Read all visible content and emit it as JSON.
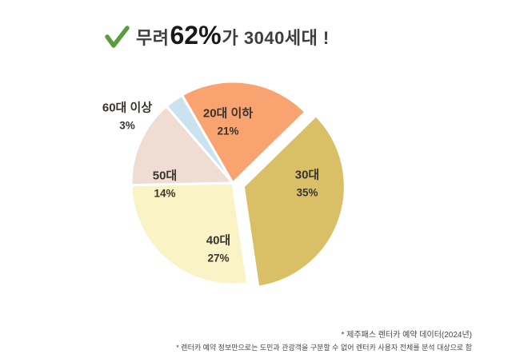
{
  "title": {
    "prefix": "무려 ",
    "highlight": "62%",
    "suffix": "가 3040세대 !"
  },
  "colors": {
    "check_green": "#5C9C3E",
    "title_text": "#3F3E3B",
    "highlight_text": "#191919",
    "label_text": "#39352E",
    "footnote_text": "#474747",
    "background": "#FFFFFF",
    "slice_gap_stroke": "#FFFFFF"
  },
  "footnotes": {
    "line1": "* 제주패스 렌터카 예약 데이터(2024년)",
    "line2": "* 렌터카 예약 정보만으로는 도민과 관광객을 구분할 수 없어 렌터카 사용자 전체를 분석 대상으로 함"
  },
  "chart_data": {
    "type": "pie",
    "title": "무려 62%가 3040세대 !",
    "categories": [
      "20대 이하",
      "30대",
      "40대",
      "50대",
      "60대 이상"
    ],
    "values": [
      21,
      35,
      27,
      14,
      3
    ],
    "pct_labels": [
      "21%",
      "35%",
      "27%",
      "14%",
      "3%"
    ],
    "colors": [
      "#F9A370",
      "#D9C066",
      "#FAF3C5",
      "#EFDCD3",
      "#CBE3F1"
    ],
    "start_angle_deg": -30,
    "direction": "clockwise",
    "exploded_index": 1,
    "legend": "none",
    "label_placement": "inside, except smallest slice labeled outside top-left",
    "annotations": [
      "* 제주패스 렌터카 예약 데이터(2024년)",
      "* 렌터카 예약 정보만으로는 도민과 관광객을 구분할 수 없어 렌터카 사용자 전체를 분석 대상으로 함"
    ]
  }
}
